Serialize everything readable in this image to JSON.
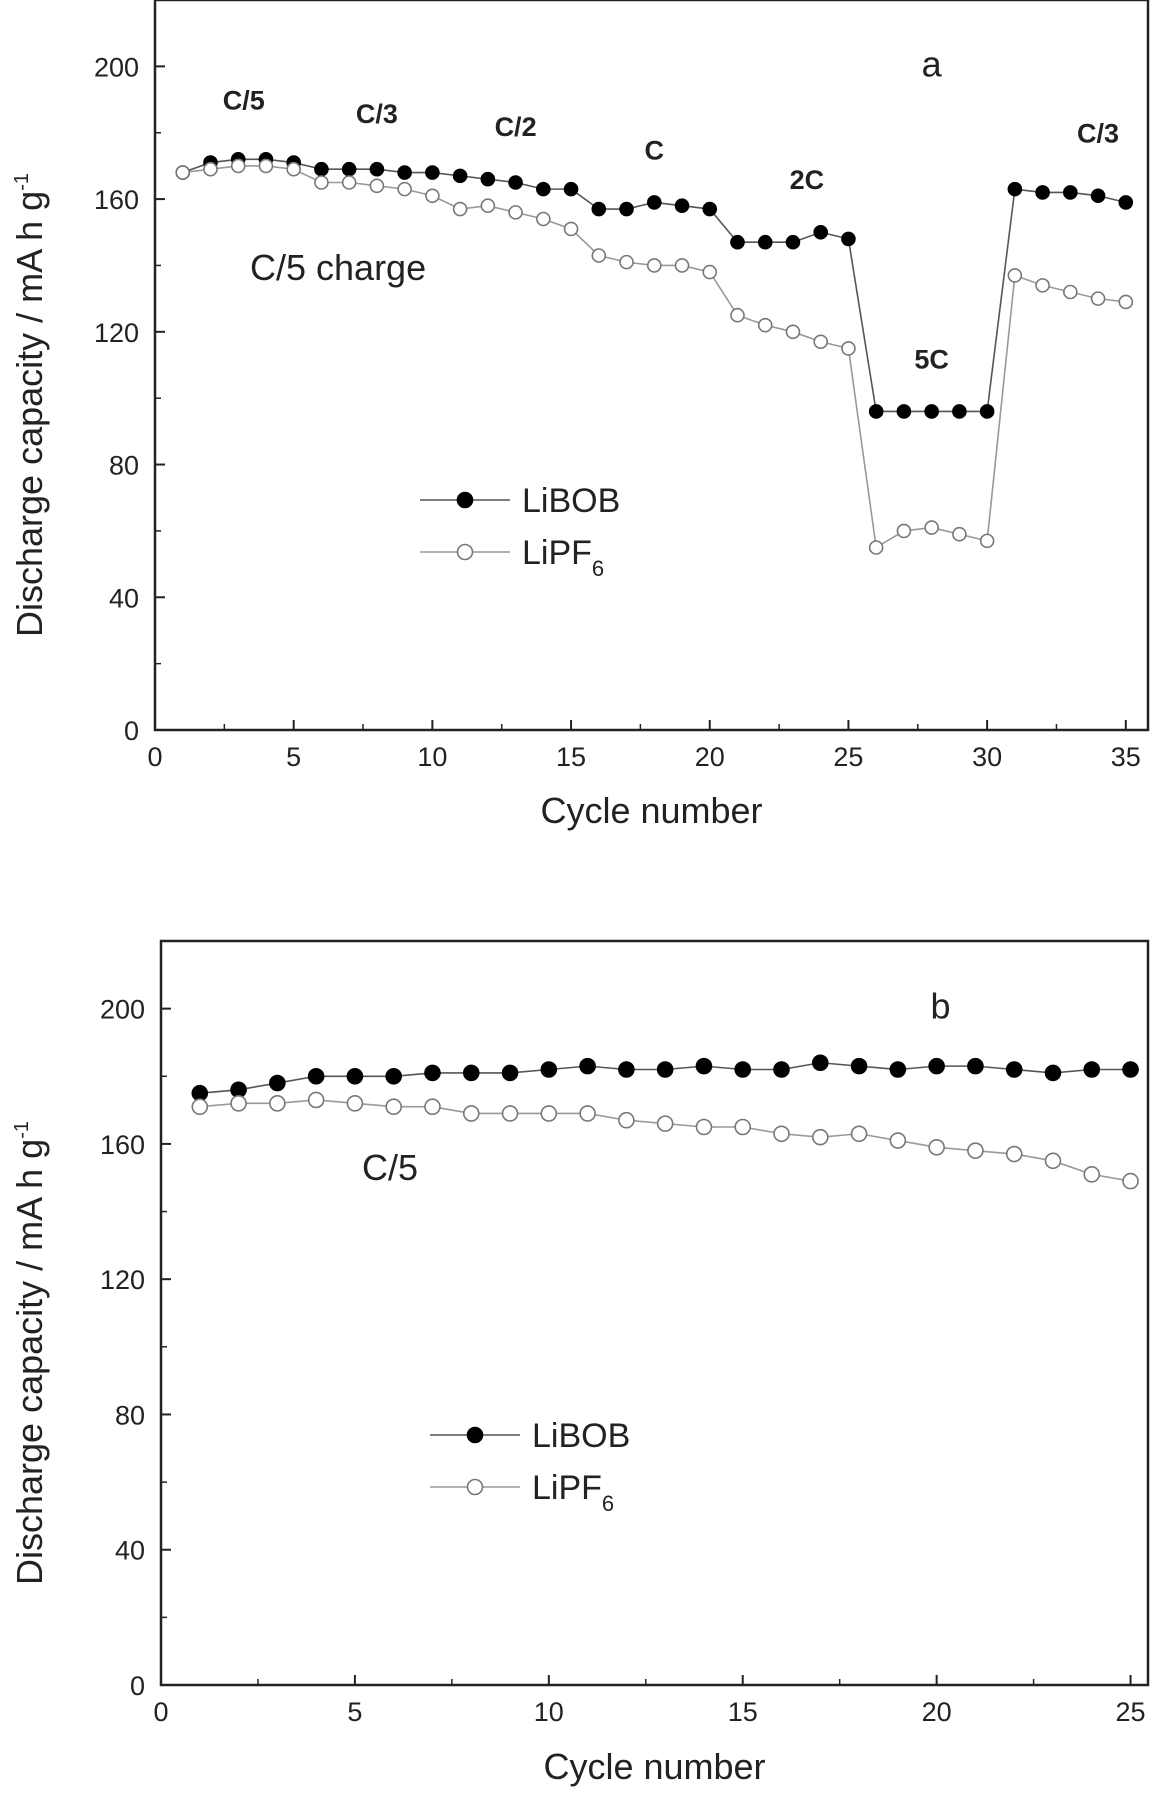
{
  "chart_data": [
    {
      "type": "line",
      "panel_label": "a",
      "xlabel": "Cycle number",
      "ylabel": "Discharge capacity / mA h g",
      "ylabel_superscript": "-1",
      "xlim": [
        0,
        35.8
      ],
      "ylim": [
        0,
        220
      ],
      "xticks": [
        "0",
        "5",
        "10",
        "15",
        "20",
        "25",
        "30",
        "35"
      ],
      "yticks": [
        "0",
        "40",
        "80",
        "120",
        "160",
        "200"
      ],
      "grid": false,
      "legend_placement": "center-left",
      "condition_note": "C/5 charge",
      "annotations": [
        {
          "text": "C/5",
          "x": 3.2,
          "y": 190
        },
        {
          "text": "C/3",
          "x": 8,
          "y": 186
        },
        {
          "text": "C/2",
          "x": 13,
          "y": 182
        },
        {
          "text": "C",
          "x": 18,
          "y": 175
        },
        {
          "text": "2C",
          "x": 23.5,
          "y": 166
        },
        {
          "text": "5C",
          "x": 28,
          "y": 112
        },
        {
          "text": "C/3",
          "x": 34,
          "y": 180
        }
      ],
      "x": [
        1,
        2,
        3,
        4,
        5,
        6,
        7,
        8,
        9,
        10,
        11,
        12,
        13,
        14,
        15,
        16,
        17,
        18,
        19,
        20,
        21,
        22,
        23,
        24,
        25,
        26,
        27,
        28,
        29,
        30,
        31,
        32,
        33,
        34,
        35
      ],
      "series": [
        {
          "name": "LiBOB",
          "subscript": "",
          "marker": "filled",
          "values": [
            168,
            171,
            172,
            172,
            171,
            169,
            169,
            169,
            168,
            168,
            167,
            166,
            165,
            163,
            163,
            157,
            157,
            159,
            158,
            157,
            147,
            147,
            147,
            150,
            148,
            96,
            96,
            96,
            96,
            96,
            163,
            162,
            162,
            161,
            159
          ]
        },
        {
          "name": "LiPF",
          "subscript": "6",
          "marker": "open",
          "values": [
            168,
            169,
            170,
            170,
            169,
            165,
            165,
            164,
            163,
            161,
            157,
            158,
            156,
            154,
            151,
            143,
            141,
            140,
            140,
            138,
            125,
            122,
            120,
            117,
            115,
            55,
            60,
            61,
            59,
            57,
            137,
            134,
            132,
            130,
            129
          ]
        }
      ]
    },
    {
      "type": "line",
      "panel_label": "b",
      "xlabel": "Cycle number",
      "ylabel": "Discharge capacity / mA h g",
      "ylabel_superscript": "-1",
      "xlim": [
        0,
        25.45
      ],
      "ylim": [
        0,
        220
      ],
      "xticks": [
        "0",
        "5",
        "10",
        "15",
        "20",
        "25"
      ],
      "yticks": [
        "0",
        "40",
        "80",
        "120",
        "160",
        "200"
      ],
      "grid": false,
      "legend_placement": "center-left",
      "condition_note": "C/5",
      "annotations": [],
      "x": [
        1,
        2,
        3,
        4,
        5,
        6,
        7,
        8,
        9,
        10,
        11,
        12,
        13,
        14,
        15,
        16,
        17,
        18,
        19,
        20,
        21,
        22,
        23,
        24,
        25
      ],
      "series": [
        {
          "name": "LiBOB",
          "subscript": "",
          "marker": "filled",
          "values": [
            175,
            176,
            178,
            180,
            180,
            180,
            181,
            181,
            181,
            182,
            183,
            182,
            182,
            183,
            182,
            182,
            184,
            183,
            182,
            183,
            183,
            182,
            181,
            182,
            182
          ]
        },
        {
          "name": "LiPF",
          "subscript": "6",
          "marker": "open",
          "values": [
            171,
            172,
            172,
            173,
            172,
            171,
            171,
            169,
            169,
            169,
            169,
            167,
            166,
            165,
            165,
            163,
            162,
            163,
            161,
            159,
            158,
            157,
            155,
            151,
            149
          ]
        }
      ]
    }
  ]
}
